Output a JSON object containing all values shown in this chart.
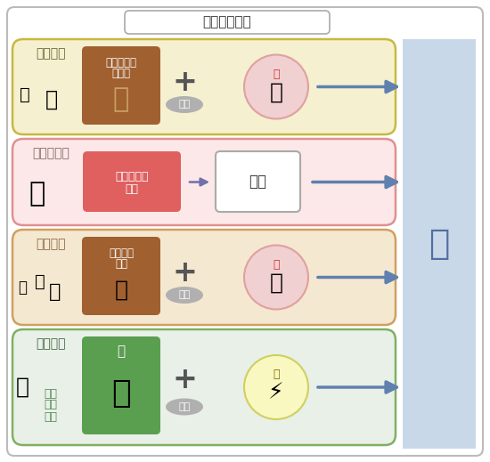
{
  "title": "氢的制造方法",
  "bg_color": "#f5f5f5",
  "outer_border_color": "#cccccc",
  "rows": [
    {
      "label": "化石燃料",
      "label_color": "#666633",
      "bg_color": "#f5f0d0",
      "border_color": "#c8b840",
      "box1_text1": "石油、煤、",
      "box1_text2": "天然气",
      "box1_bg": "#a06030",
      "connector": "+",
      "catalyst_label": "触媒",
      "circle_label": "热",
      "circle_bg": "#f0d0d0",
      "circle_border": "#e0a0a0"
    },
    {
      "label": "工业副产物",
      "label_color": "#886666",
      "bg_color": "#fce8e8",
      "border_color": "#e09090",
      "box1_text1": "富含氢的副",
      "box1_text2": "产物",
      "box1_bg": "#e06060",
      "connector": "arrow",
      "box2_text": "精制",
      "box2_bg": "#ffffff"
    },
    {
      "label": "生物原料",
      "label_color": "#886644",
      "bg_color": "#f5e8d0",
      "border_color": "#d0a060",
      "box1_text1": "甲烷、甲",
      "box1_text2": "醇等",
      "box1_bg": "#a06030",
      "connector": "+",
      "catalyst_label": "触媒",
      "circle_label": "热",
      "circle_bg": "#f0d0d0",
      "circle_border": "#e0a0a0"
    },
    {
      "label": "自然能量",
      "label_color": "#446644",
      "bg_color": "#e8f0e8",
      "border_color": "#80b060",
      "box1_text1": "水",
      "box1_text2": "",
      "box1_bg": "#5a9e50",
      "connector": "+",
      "catalyst_label": "电解",
      "circle_label": "电",
      "circle_bg": "#f8f8c0",
      "circle_border": "#d0d060"
    }
  ],
  "right_label": "氢",
  "right_bg": "#c8d8e8",
  "arrow_color": "#6080b0",
  "catalyst_bg": "#b0b0b0",
  "arrow_small_color": "#7070aa"
}
